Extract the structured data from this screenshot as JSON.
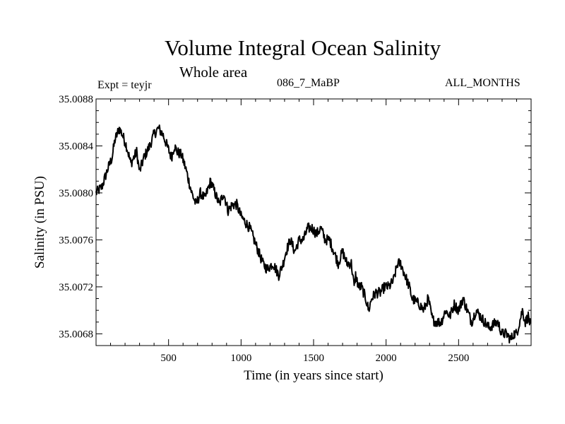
{
  "header": {
    "title": "Volume Integral Ocean Salinity",
    "subtitle": "Whole area",
    "expt_label": "Expt = teyjr",
    "run_id": "086_7_MaBP",
    "months": "ALL_MONTHS"
  },
  "chart_data": {
    "type": "line",
    "title": "Volume Integral Ocean Salinity",
    "subtitle": "Whole area",
    "xlabel": "Time (in years since start)",
    "ylabel": "Salinity (in PSU)",
    "xlim": [
      0,
      3000
    ],
    "ylim": [
      35.0067,
      35.0088
    ],
    "x_ticks": [
      500,
      1000,
      1500,
      2000,
      2500
    ],
    "x_tick_labels": [
      "500",
      "1000",
      "1500",
      "2000",
      "2500"
    ],
    "y_ticks": [
      35.0068,
      35.0072,
      35.0076,
      35.008,
      35.0084,
      35.0088
    ],
    "y_tick_labels": [
      "35.0068",
      "35.0072",
      "35.0076",
      "35.0080",
      "35.0084",
      "35.0088"
    ],
    "grid": false,
    "series": [
      {
        "name": "teyjr",
        "color": "#000000",
        "x": [
          0,
          40,
          80,
          110,
          130,
          160,
          180,
          210,
          240,
          260,
          280,
          300,
          330,
          370,
          400,
          430,
          460,
          490,
          520,
          540,
          560,
          590,
          620,
          640,
          660,
          690,
          720,
          750,
          790,
          820,
          850,
          880,
          910,
          940,
          970,
          1000,
          1030,
          1060,
          1090,
          1120,
          1150,
          1180,
          1220,
          1260,
          1290,
          1310,
          1340,
          1370,
          1400,
          1430,
          1460,
          1490,
          1520,
          1550,
          1580,
          1610,
          1640,
          1670,
          1700,
          1730,
          1760,
          1780,
          1790,
          1810,
          1830,
          1860,
          1880,
          1900,
          1930,
          1960,
          1990,
          2020,
          2050,
          2080,
          2100,
          2130,
          2160,
          2180,
          2200,
          2230,
          2260,
          2290,
          2320,
          2350,
          2380,
          2410,
          2440,
          2470,
          2500,
          2530,
          2560,
          2590,
          2620,
          2650,
          2680,
          2710,
          2740,
          2770,
          2800,
          2830,
          2860,
          2880,
          2900,
          2920,
          2940,
          2960,
          2980,
          3000
        ],
        "y": [
          35.008,
          35.00805,
          35.0082,
          35.0083,
          35.00845,
          35.00855,
          35.0085,
          35.0084,
          35.00825,
          35.0083,
          35.00835,
          35.00818,
          35.0083,
          35.0084,
          35.0085,
          35.00855,
          35.0085,
          35.0084,
          35.0083,
          35.0084,
          35.00835,
          35.00832,
          35.0082,
          35.0081,
          35.008,
          35.0079,
          35.008,
          35.00795,
          35.0081,
          35.008,
          35.0079,
          35.008,
          35.00785,
          35.0079,
          35.0079,
          35.0078,
          35.00775,
          35.0077,
          35.0076,
          35.0075,
          35.0074,
          35.00735,
          35.0074,
          35.0073,
          35.0074,
          35.0075,
          35.0076,
          35.0075,
          35.0076,
          35.0076,
          35.0077,
          35.0077,
          35.00765,
          35.0077,
          35.0076,
          35.0076,
          35.0075,
          35.0074,
          35.0075,
          35.0074,
          35.0074,
          35.0072,
          35.0073,
          35.0072,
          35.0072,
          35.0071,
          35.007,
          35.0071,
          35.00715,
          35.00715,
          35.0072,
          35.0072,
          35.00725,
          35.0074,
          35.0074,
          35.0073,
          35.0072,
          35.0071,
          35.00708,
          35.00705,
          35.007,
          35.0071,
          35.00692,
          35.0069,
          35.0069,
          35.007,
          35.00695,
          35.00705,
          35.007,
          35.0071,
          35.007,
          35.0069,
          35.007,
          35.00695,
          35.0069,
          35.00685,
          35.00688,
          35.0069,
          35.0068,
          35.0068,
          35.00675,
          35.0068,
          35.0068,
          35.0069,
          35.007,
          35.0069,
          35.00695,
          35.00685
        ]
      }
    ]
  }
}
